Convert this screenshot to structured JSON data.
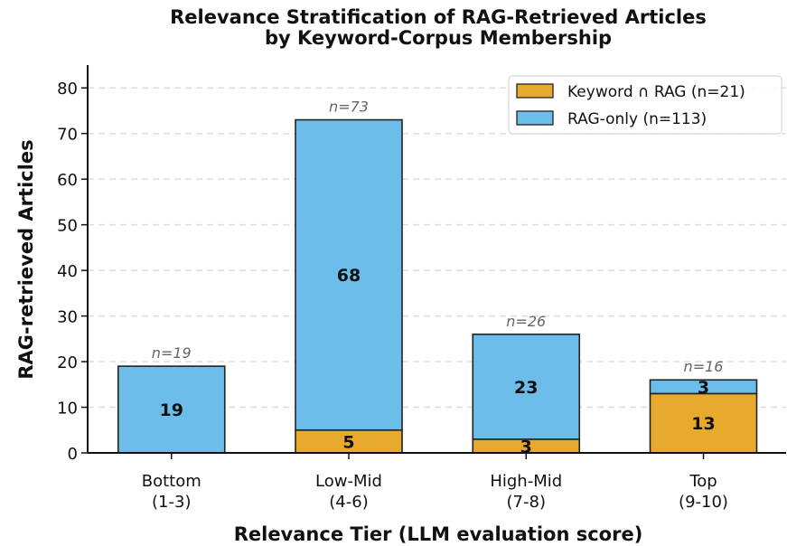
{
  "chart_data": {
    "type": "stacked_bar",
    "title": "Relevance Stratification of RAG-Retrieved Articles\nby Keyword-Corpus Membership",
    "x_label": "Relevance Tier (LLM evaluation score)",
    "y_label": "RAG-retrieved Articles",
    "categories": [
      "Bottom\n(1-3)",
      "Low-Mid\n(4-6)",
      "High-Mid\n(7-8)",
      "Top\n(9-10)"
    ],
    "series": [
      {
        "name": "Keyword ∩ RAG (n=21)",
        "color": "#e8aa2c",
        "values": [
          0,
          5,
          3,
          13
        ]
      },
      {
        "name": "RAG-only (n=113)",
        "color": "#6cbdea",
        "values": [
          19,
          68,
          23,
          3
        ]
      }
    ],
    "total_labels": [
      "n=19",
      "n=73",
      "n=26",
      "n=16"
    ],
    "ylim": [
      0,
      85
    ],
    "yticks": [
      0,
      10,
      20,
      30,
      40,
      50,
      60,
      70,
      80
    ],
    "grid": true,
    "legend": "upper right"
  }
}
